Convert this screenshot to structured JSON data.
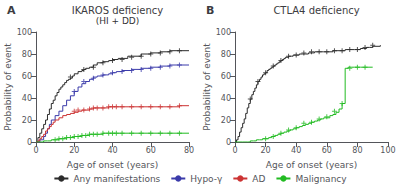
{
  "chart_data": [
    {
      "type": "step",
      "title": "IKAROS deficiency",
      "subtitle": "(HI + DD)",
      "xlabel": "Age of onset (years)",
      "ylabel": "Probability of event",
      "annotations": [
        "A"
      ],
      "xlim": [
        0,
        80
      ],
      "xticks": [
        0,
        20,
        40,
        60,
        80
      ],
      "ylim": [
        0,
        100
      ],
      "yticks": [
        0,
        20,
        40,
        60,
        80,
        100
      ],
      "grid": false,
      "legend": "bottom",
      "series": [
        {
          "name": "Any manifestations",
          "color": "#2b2b2b",
          "x": [
            0,
            1,
            2,
            3,
            4,
            5,
            6,
            7,
            8,
            9,
            10,
            11,
            12,
            13,
            14,
            15,
            16,
            17,
            18,
            19,
            20,
            22,
            24,
            25,
            26,
            28,
            30,
            32,
            35,
            38,
            40,
            43,
            48,
            55,
            60,
            65,
            70,
            75,
            80
          ],
          "values": [
            0,
            4,
            8,
            12,
            16,
            20,
            25,
            30,
            35,
            38,
            42,
            45,
            48,
            50,
            52,
            54,
            56,
            57,
            58,
            60,
            62,
            64,
            65,
            66,
            67,
            68,
            70,
            72,
            73,
            74,
            75,
            76,
            78,
            80,
            81,
            82,
            83,
            83,
            83
          ],
          "censored": {
            "x": [
              18,
              25,
              30,
              35,
              40,
              45,
              50,
              55,
              60,
              65,
              70,
              75
            ],
            "values": [
              59,
              66,
              68,
              72,
              74,
              75,
              77,
              78,
              80,
              81,
              82,
              83
            ]
          }
        },
        {
          "name": "Hypo-γ",
          "color": "#3b3baa",
          "x": [
            0,
            2,
            4,
            5,
            6,
            7,
            8,
            10,
            12,
            14,
            16,
            18,
            20,
            22,
            24,
            26,
            28,
            30,
            32,
            35,
            38,
            40,
            42,
            45,
            50,
            55,
            60,
            65,
            70,
            75,
            80
          ],
          "values": [
            0,
            2,
            5,
            8,
            12,
            16,
            20,
            24,
            28,
            33,
            38,
            42,
            46,
            50,
            53,
            55,
            57,
            59,
            60,
            61,
            62,
            63,
            64,
            65,
            66,
            67,
            68,
            69,
            70,
            70,
            70
          ],
          "censored": {
            "x": [
              20,
              25,
              30,
              35,
              40,
              45,
              50,
              55,
              60,
              65,
              70,
              75
            ],
            "values": [
              46,
              55,
              58,
              61,
              63,
              64,
              65,
              66,
              67,
              68,
              69,
              70
            ]
          }
        },
        {
          "name": "AD",
          "color": "#cc3333",
          "x": [
            0,
            1,
            2,
            3,
            4,
            5,
            6,
            7,
            8,
            9,
            10,
            12,
            14,
            16,
            18,
            20,
            22,
            24,
            26,
            28,
            30,
            32,
            35,
            38,
            40,
            42,
            45,
            50,
            55,
            60,
            65,
            70,
            75,
            80
          ],
          "values": [
            0,
            1,
            3,
            5,
            7,
            10,
            12,
            14,
            16,
            18,
            20,
            22,
            24,
            25,
            26,
            27,
            28,
            29,
            29,
            30,
            31,
            31,
            31,
            32,
            32,
            32,
            32,
            32,
            32,
            32,
            32,
            32,
            33,
            33
          ],
          "censored": {
            "x": [
              20,
              22,
              25,
              28,
              30,
              32,
              35,
              38,
              40,
              42,
              45,
              50,
              55,
              60,
              65,
              70,
              75
            ],
            "values": [
              28,
              29,
              29,
              30,
              31,
              31,
              31,
              32,
              32,
              32,
              32,
              32,
              32,
              32,
              32,
              32,
              33
            ]
          }
        },
        {
          "name": "Malignancy",
          "color": "#22bb22",
          "x": [
            0,
            2,
            4,
            6,
            8,
            10,
            12,
            14,
            16,
            18,
            20,
            22,
            24,
            26,
            28,
            30,
            32,
            35,
            38,
            40,
            42,
            45,
            50,
            55,
            60,
            65,
            70,
            75,
            80
          ],
          "values": [
            0,
            0,
            1,
            1,
            2,
            2,
            3,
            3,
            4,
            4,
            5,
            5,
            6,
            6,
            7,
            7,
            7,
            8,
            8,
            8,
            8,
            8,
            8,
            8,
            8,
            8,
            8,
            8,
            8
          ],
          "censored": {
            "x": [
              10,
              12,
              14,
              16,
              18,
              20,
              22,
              24,
              26,
              28,
              30,
              32,
              35,
              38,
              40,
              42,
              45,
              50,
              55,
              60,
              65,
              70,
              75
            ],
            "values": [
              2,
              3,
              3,
              4,
              4,
              5,
              5,
              6,
              6,
              7,
              7,
              7,
              8,
              8,
              8,
              8,
              8,
              8,
              8,
              8,
              8,
              8,
              8
            ]
          }
        }
      ]
    },
    {
      "type": "step",
      "title": "CTLA4 deficiency",
      "xlabel": "Age of onset (years)",
      "ylabel": "Probability of event",
      "annotations": [
        "B"
      ],
      "xlim": [
        0,
        100
      ],
      "xticks": [
        0,
        20,
        40,
        60,
        80,
        100
      ],
      "ylim": [
        0,
        100
      ],
      "yticks": [
        0,
        20,
        40,
        60,
        80,
        100
      ],
      "grid": false,
      "series": [
        {
          "name": "Any manifestations",
          "color": "#2b2b2b",
          "x": [
            0,
            1,
            2,
            3,
            4,
            5,
            6,
            7,
            8,
            9,
            10,
            11,
            12,
            13,
            14,
            15,
            16,
            17,
            18,
            19,
            20,
            21,
            22,
            23,
            24,
            25,
            26,
            27,
            28,
            29,
            30,
            31,
            32,
            33,
            34,
            35,
            36,
            37,
            38,
            40,
            42,
            44,
            46,
            48,
            50,
            52,
            54,
            56,
            58,
            60,
            62,
            64,
            66,
            68,
            70,
            72,
            74,
            76,
            78,
            80,
            82,
            84,
            86,
            88,
            90,
            95
          ],
          "values": [
            0,
            2,
            5,
            9,
            13,
            17,
            21,
            26,
            31,
            35,
            39,
            43,
            46,
            49,
            52,
            55,
            57,
            59,
            61,
            62,
            63,
            65,
            66,
            67,
            68,
            69,
            70,
            71,
            72,
            73,
            74,
            75,
            76,
            77,
            77,
            78,
            78,
            78,
            79,
            79,
            80,
            80,
            80,
            81,
            81,
            82,
            82,
            82,
            82,
            82,
            82,
            83,
            83,
            83,
            83,
            84,
            84,
            84,
            84,
            84,
            85,
            85,
            86,
            86,
            87,
            88
          ],
          "censored": {
            "x": [
              10,
              15,
              20,
              25,
              30,
              35,
              40,
              45,
              50,
              55,
              60,
              65,
              70,
              75,
              80,
              85,
              90
            ],
            "values": [
              39,
              55,
              63,
              69,
              74,
              78,
              79,
              81,
              82,
              82,
              82,
              83,
              83,
              84,
              84,
              86,
              88
            ]
          }
        },
        {
          "name": "Malignancy",
          "color": "#22bb22",
          "x": [
            0,
            5,
            8,
            10,
            12,
            14,
            16,
            18,
            20,
            22,
            24,
            26,
            28,
            30,
            32,
            34,
            36,
            38,
            40,
            42,
            44,
            46,
            48,
            50,
            52,
            54,
            56,
            58,
            62,
            64,
            66,
            68,
            70,
            72,
            74,
            76,
            78,
            80,
            82,
            85,
            90
          ],
          "values": [
            0,
            0,
            0,
            1,
            1,
            2,
            2,
            3,
            3,
            4,
            5,
            6,
            7,
            8,
            9,
            10,
            11,
            12,
            13,
            14,
            15,
            16,
            17,
            18,
            19,
            20,
            21,
            22,
            24,
            25,
            27,
            30,
            35,
            67,
            68,
            68,
            68,
            68,
            68,
            68,
            68
          ],
          "censored": {
            "x": [
              20,
              25,
              30,
              35,
              40,
              45,
              50,
              55,
              60,
              65,
              70,
              75,
              80,
              85
            ],
            "values": [
              3,
              5,
              8,
              11,
              13,
              17,
              18,
              21,
              23,
              28,
              35,
              67,
              68,
              68
            ]
          }
        }
      ]
    }
  ]
}
